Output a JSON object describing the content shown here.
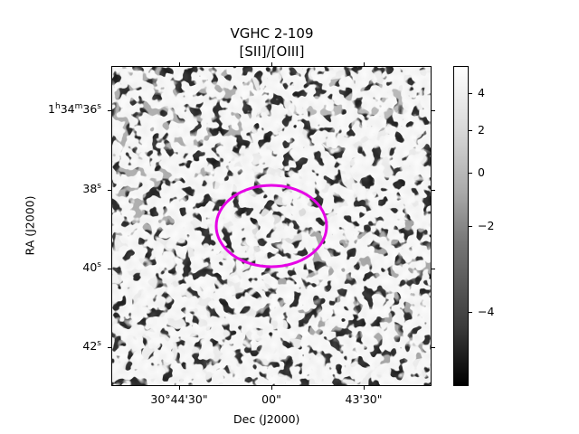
{
  "chart_data": {
    "type": "heatmap",
    "title": "VGHC 2-109",
    "subtitle": "[SII]/[OIII]",
    "xlabel": "Dec (J2000)",
    "ylabel": "RA (J2000)",
    "x_ticks": [
      {
        "label": "30°44'30\"",
        "value": "30°44'30\""
      },
      {
        "label": "00\"",
        "value": "30°44'00\""
      },
      {
        "label": "43'30\"",
        "value": "30°43'30\""
      }
    ],
    "y_ticks": [
      {
        "label_main": "1",
        "sup_h": "h",
        "label_m": "34",
        "sup_m": "m",
        "label_s": "36",
        "sup_s": "s"
      },
      {
        "label_s": "38",
        "sup_s": "s"
      },
      {
        "label_s": "40",
        "sup_s": "s"
      },
      {
        "label_s": "42",
        "sup_s": "s"
      }
    ],
    "colorbar": {
      "colormap": "gray",
      "ticks": [
        4,
        2,
        0,
        -2,
        -4
      ],
      "tick_labels": [
        "4",
        "2",
        "0",
        "−2",
        "−4"
      ],
      "range": [
        -5.6,
        5.2
      ]
    },
    "annotation": {
      "shape": "ellipse",
      "color": "#e600e6"
    },
    "grid": false
  }
}
